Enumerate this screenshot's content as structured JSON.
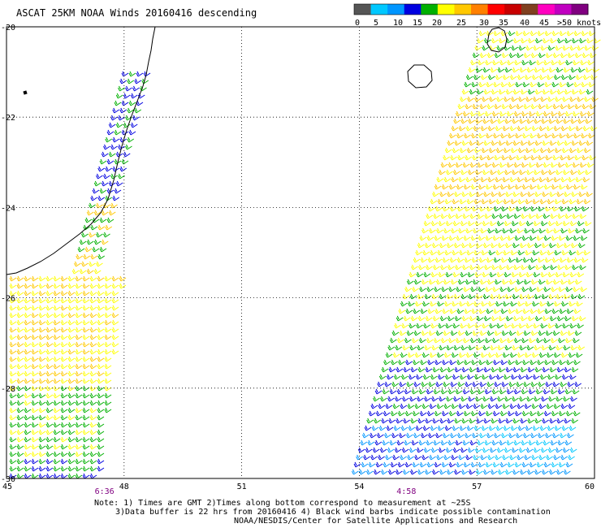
{
  "title": "ASCAT 25KM NOAA Winds 20160416 descending",
  "colorbar": {
    "labels": [
      "0",
      "5",
      "10",
      "15",
      "20",
      "25",
      "30",
      "35",
      "40",
      "45",
      ">50 knots"
    ],
    "colors": [
      "#555555",
      "#00c8ff",
      "#0096ff",
      "#0000e0",
      "#00b000",
      "#ffff00",
      "#ffc800",
      "#ff8000",
      "#ff0000",
      "#c80000",
      "#804020",
      "#ff00c0",
      "#c000c0",
      "#800080"
    ]
  },
  "axes": {
    "lat_labels": [
      "-20",
      "-22",
      "-24",
      "-26",
      "-28",
      "-30"
    ],
    "lon_labels": [
      "45",
      "48",
      "51",
      "54",
      "57",
      "60"
    ],
    "lat_range": [
      -20,
      -30
    ],
    "lon_range": [
      45,
      60
    ]
  },
  "swaths": [
    {
      "name": "west",
      "time": "6:36",
      "time_lon": 47.5
    },
    {
      "name": "east",
      "time": "4:58",
      "time_lon": 55.2
    }
  ],
  "notes": {
    "line1": "Note: 1) Times are GMT 2)Times along bottom correspond to measurement at ~25S",
    "line2": "3)Data buffer is 22 hrs from 20160416 4) Black wind barbs indicate possible contamination",
    "line3": "NOAA/NESDIS/Center for Satellite Applications and Research"
  }
}
